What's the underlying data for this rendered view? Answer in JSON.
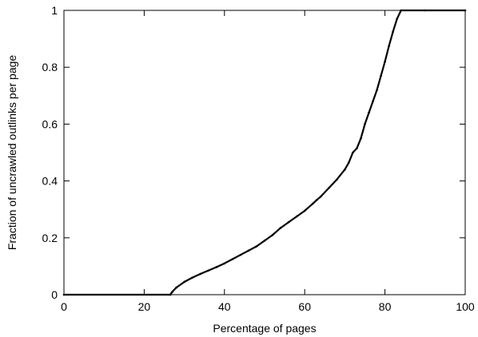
{
  "chart_data": {
    "type": "line",
    "title": "",
    "xlabel": "Percentage of pages",
    "ylabel": "Fraction of uncrawled outlinks per page",
    "xlim": [
      0,
      100
    ],
    "ylim": [
      0,
      1
    ],
    "x_ticks": [
      "0",
      "20",
      "40",
      "60",
      "80",
      "100"
    ],
    "y_ticks": [
      "0",
      "0.2",
      "0.4",
      "0.6",
      "0.8",
      "1"
    ],
    "grid": false,
    "legend": "none",
    "series": [
      {
        "color": "#000000",
        "x": [
          0,
          26.5,
          27,
          28,
          30,
          32,
          34,
          36,
          38,
          40,
          42,
          44,
          46,
          48,
          50,
          52,
          54,
          56,
          58,
          60,
          62,
          63,
          64,
          66,
          68,
          70,
          71,
          72,
          73,
          74,
          75,
          76,
          77,
          78,
          79,
          80,
          81,
          82,
          83,
          84,
          90,
          100
        ],
        "y": [
          0,
          0,
          0.01,
          0.025,
          0.045,
          0.06,
          0.073,
          0.085,
          0.097,
          0.11,
          0.125,
          0.14,
          0.155,
          0.17,
          0.19,
          0.21,
          0.235,
          0.255,
          0.275,
          0.295,
          0.32,
          0.333,
          0.345,
          0.375,
          0.405,
          0.44,
          0.465,
          0.5,
          0.515,
          0.55,
          0.6,
          0.64,
          0.68,
          0.72,
          0.77,
          0.82,
          0.875,
          0.925,
          0.97,
          1.0,
          1.0,
          1.0
        ]
      }
    ]
  }
}
